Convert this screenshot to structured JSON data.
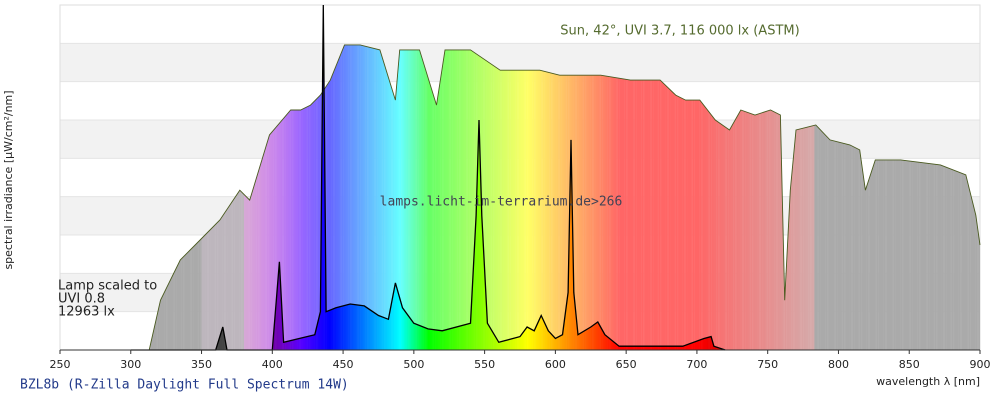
{
  "chart_data": {
    "type": "spectrum",
    "xlabel": "wavelength λ [nm]",
    "ylabel": "spectral irradiance [µW/cm²/nm]",
    "watermark": "lamps.licht-im-terrarium.de>266",
    "annotations": [
      "Lamp scaled to",
      "UVI 0.8",
      "12963 lx"
    ],
    "xlim": [
      250,
      900
    ],
    "xticks": [
      250,
      300,
      350,
      400,
      450,
      500,
      550,
      600,
      650,
      700,
      750,
      800,
      850,
      900
    ],
    "ylim": [
      0,
      9
    ],
    "yticks": [
      0,
      1,
      2,
      3,
      4,
      5,
      6,
      7,
      8,
      9
    ],
    "ytick_labels": false,
    "grid": true,
    "series": [
      {
        "name": "Sun, 42°, UVI 3.7, 116 000 lx (ASTM)",
        "color": "#4a5a20",
        "x": [
          313,
          321,
          335,
          349,
          363,
          377,
          384,
          398,
          413,
          420,
          427,
          434,
          441,
          451,
          462,
          476,
          487,
          490,
          504,
          516,
          522,
          540,
          561,
          589,
          603,
          632,
          653,
          674,
          685,
          692,
          702,
          713,
          723,
          731,
          741,
          752,
          759,
          762,
          766,
          770,
          784,
          794,
          808,
          815,
          819,
          826,
          844,
          872,
          890,
          897,
          900
        ],
        "values": [
          0,
          1.3,
          2.35,
          2.87,
          3.39,
          4.17,
          3.91,
          5.61,
          6.26,
          6.26,
          6.39,
          6.65,
          7.04,
          7.96,
          7.96,
          7.83,
          6.52,
          7.83,
          7.83,
          6.39,
          7.83,
          7.83,
          7.3,
          7.3,
          7.17,
          7.17,
          7.04,
          7.04,
          6.65,
          6.52,
          6.52,
          6.0,
          5.74,
          6.26,
          6.13,
          6.26,
          6.13,
          1.3,
          4.17,
          5.74,
          5.87,
          5.48,
          5.35,
          5.22,
          4.17,
          4.96,
          4.96,
          4.83,
          4.57,
          3.52,
          2.74
        ]
      },
      {
        "name": "BZL8b (R-Zilla Daylight Full Spectrum 14W)",
        "color": "#000000",
        "x": [
          300,
          360,
          365,
          368,
          400,
          405,
          408,
          430,
          434,
          436,
          438,
          445,
          455,
          465,
          475,
          482,
          487,
          492,
          500,
          510,
          520,
          540,
          544,
          546,
          548,
          552,
          560,
          575,
          580,
          585,
          590,
          595,
          600,
          605,
          609,
          611,
          613,
          616,
          625,
          630,
          635,
          645,
          660,
          690,
          705,
          710,
          712,
          720
        ],
        "values": [
          0,
          0,
          0.6,
          0,
          0,
          2.3,
          0.2,
          0.4,
          1.0,
          9.0,
          1.0,
          1.1,
          1.2,
          1.15,
          0.9,
          0.8,
          1.75,
          1.1,
          0.7,
          0.55,
          0.5,
          0.7,
          3.5,
          6.0,
          3.5,
          0.7,
          0.2,
          0.35,
          0.6,
          0.5,
          0.9,
          0.5,
          0.3,
          0.4,
          1.5,
          5.48,
          1.5,
          0.4,
          0.6,
          0.73,
          0.4,
          0.1,
          0.1,
          0.1,
          0.3,
          0.35,
          0.1,
          0
        ]
      }
    ]
  }
}
